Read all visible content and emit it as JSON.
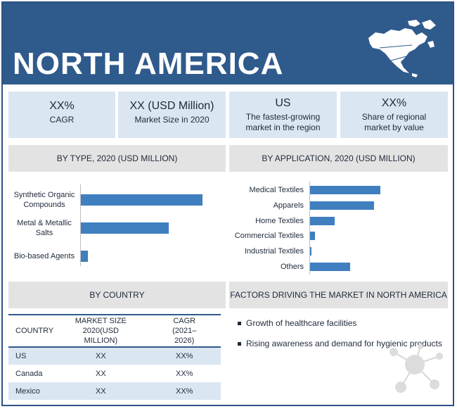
{
  "header": {
    "title": "NORTH AMERICA"
  },
  "kpis": [
    {
      "big": "XX%",
      "small": "CAGR"
    },
    {
      "big": "XX (USD Million)",
      "small": "Market Size in 2020"
    },
    {
      "big": "US",
      "small": "The fastest-growing market in the region"
    },
    {
      "big": "XX%",
      "small": "Share of regional market by value"
    }
  ],
  "sections": {
    "by_type": "BY TYPE, 2020 (USD MILLION)",
    "by_application": "BY APPLICATION, 2020 (USD MILLION)",
    "by_country": "BY COUNTRY",
    "factors": "FACTORS DRIVING THE MARKET IN NORTH AMERICA"
  },
  "chart_data": [
    {
      "type": "bar",
      "orientation": "horizontal",
      "title": "BY TYPE, 2020 (USD MILLION)",
      "categories": [
        "Synthetic Organic Compounds",
        "Metal & Metallic Salts",
        "Bio-based Agents"
      ],
      "values": [
        100,
        72,
        6
      ],
      "xlim": [
        0,
        100
      ],
      "color": "#3f7fc0",
      "grid": false
    },
    {
      "type": "bar",
      "orientation": "horizontal",
      "title": "BY APPLICATION, 2020 (USD MILLION)",
      "categories": [
        "Medical Textiles",
        "Apparels",
        "Home Textiles",
        "Commercial Textiles",
        "Industrial Textiles",
        "Others"
      ],
      "values": [
        100,
        91,
        35,
        7,
        2,
        57
      ],
      "xlim": [
        0,
        100
      ],
      "color": "#3f7fc0",
      "grid": false
    }
  ],
  "country_table": {
    "headers": [
      "COUNTRY",
      "MARKET SIZE 2020(USD MILLION)",
      "CAGR (2021–2026)"
    ],
    "rows": [
      [
        "US",
        "XX",
        "XX%"
      ],
      [
        "Canada",
        "XX",
        "XX%"
      ],
      [
        "Mexico",
        "XX",
        "XX%"
      ]
    ]
  },
  "factors": [
    "Growth of healthcare facilities",
    "Rising awareness and demand for hygienic products"
  ],
  "colors": {
    "header": "#2f5a8c",
    "kpi_bg": "#dbe6f3",
    "bar": "#3f7fc0",
    "section_bg": "#e3e3e3"
  }
}
